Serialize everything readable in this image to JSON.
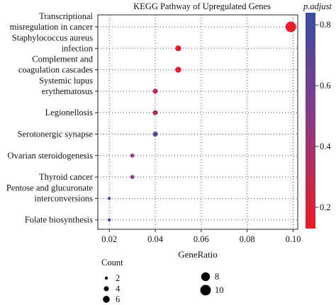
{
  "chart_data": {
    "type": "scatter",
    "title": "KEGG Pathway of Upregulated Genes",
    "xlabel": "GeneRatio",
    "ylabel": "",
    "xlim": [
      0.015,
      0.102
    ],
    "xticks": [
      "0.02",
      "0.04",
      "0.06",
      "0.08",
      "0.10"
    ],
    "xtick_values": [
      0.02,
      0.04,
      0.06,
      0.08,
      0.1
    ],
    "grid": true,
    "categories": [
      [
        "Transcriptional",
        "misregulation in cancer"
      ],
      [
        "Staphylococcus aureus",
        "infection"
      ],
      [
        "Complement and",
        "coagulation cascades"
      ],
      [
        "Systemic lupus",
        "erythematosus"
      ],
      [
        "Legionellosis"
      ],
      [
        "Serotonergic synapse"
      ],
      [
        "Ovarian steroidogenesis"
      ],
      [
        "Thyroid cancer"
      ],
      [
        "Pentose and glucuronate",
        "interconversions"
      ],
      [
        "Folate biosynthesis"
      ]
    ],
    "points": [
      {
        "gene_ratio": 0.099,
        "count": 10,
        "p_adjust": 0.16
      },
      {
        "gene_ratio": 0.05,
        "count": 5,
        "p_adjust": 0.18
      },
      {
        "gene_ratio": 0.05,
        "count": 5,
        "p_adjust": 0.18
      },
      {
        "gene_ratio": 0.04,
        "count": 4,
        "p_adjust": 0.27
      },
      {
        "gene_ratio": 0.04,
        "count": 4,
        "p_adjust": 0.38
      },
      {
        "gene_ratio": 0.04,
        "count": 4,
        "p_adjust": 0.72
      },
      {
        "gene_ratio": 0.03,
        "count": 3,
        "p_adjust": 0.5
      },
      {
        "gene_ratio": 0.03,
        "count": 3,
        "p_adjust": 0.5
      },
      {
        "gene_ratio": 0.02,
        "count": 2,
        "p_adjust": 0.8
      },
      {
        "gene_ratio": 0.02,
        "count": 2,
        "p_adjust": 0.8
      }
    ],
    "color_legend": {
      "title": "p.adjust",
      "range": [
        0.13,
        0.84
      ],
      "ticks": [
        "0.8",
        "0.6",
        "0.4",
        "0.2"
      ],
      "tick_values": [
        0.8,
        0.6,
        0.4,
        0.2
      ],
      "color_low": "#ee1b24",
      "color_high": "#3a4ea1",
      "placement": "right"
    },
    "size_legend": {
      "title": "Count",
      "items": [
        {
          "label": "2",
          "value": 2
        },
        {
          "label": "4",
          "value": 4
        },
        {
          "label": "6",
          "value": 6
        },
        {
          "label": "8",
          "value": 8
        },
        {
          "label": "10",
          "value": 10
        }
      ],
      "placement": "bottom"
    }
  }
}
